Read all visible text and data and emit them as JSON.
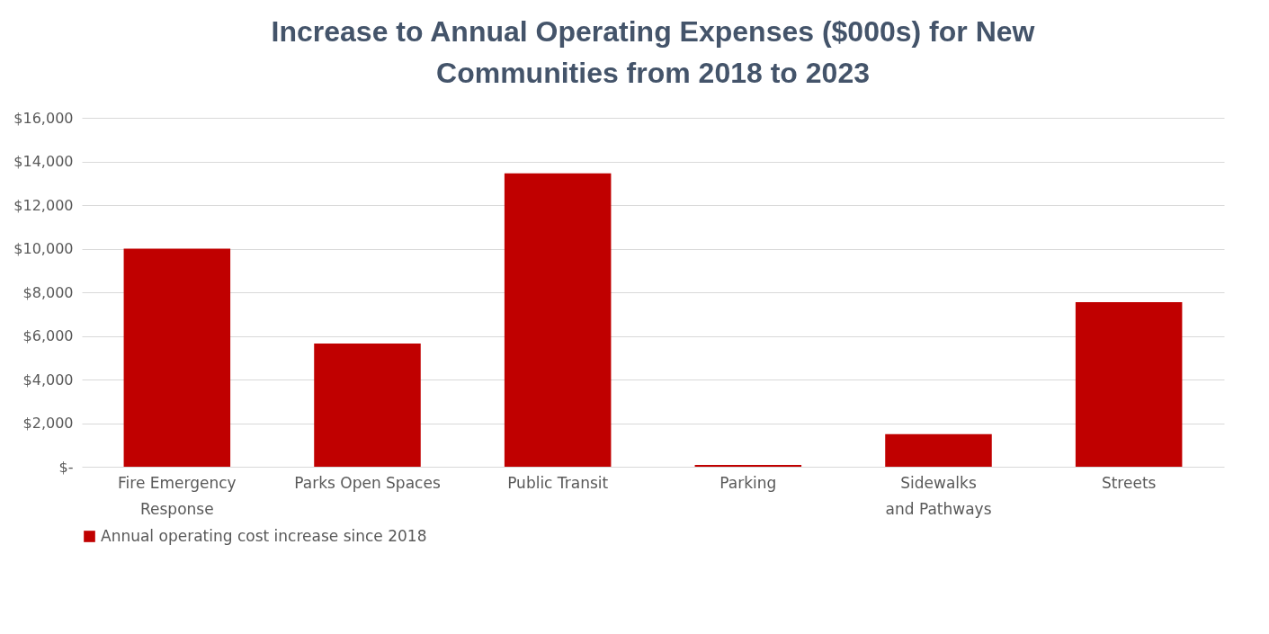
{
  "chart_data": {
    "type": "bar",
    "title": "Increase to Annual Operating Expenses ($000s) for New Communities from 2018 to 2023",
    "categories": [
      "Fire Emergency Response",
      "Parks Open Spaces",
      "Public Transit",
      "Parking",
      "Sidewalks and Pathways",
      "Streets"
    ],
    "series": [
      {
        "name": "Annual operating cost increase since 2018",
        "color": "#c00000",
        "values": [
          10000,
          5650,
          13450,
          80,
          1500,
          7550
        ]
      }
    ],
    "ylim": [
      0,
      16000
    ],
    "yticks": [
      {
        "value": 0,
        "label": "$-"
      },
      {
        "value": 2000,
        "label": "$2,000"
      },
      {
        "value": 4000,
        "label": "$4,000"
      },
      {
        "value": 6000,
        "label": "$6,000"
      },
      {
        "value": 8000,
        "label": "$8,000"
      },
      {
        "value": 10000,
        "label": "$10,000"
      },
      {
        "value": 12000,
        "label": "$12,000"
      },
      {
        "value": 14000,
        "label": "$14,000"
      },
      {
        "value": 16000,
        "label": "$16,000"
      }
    ],
    "grid": "y",
    "legend": "bottom"
  }
}
